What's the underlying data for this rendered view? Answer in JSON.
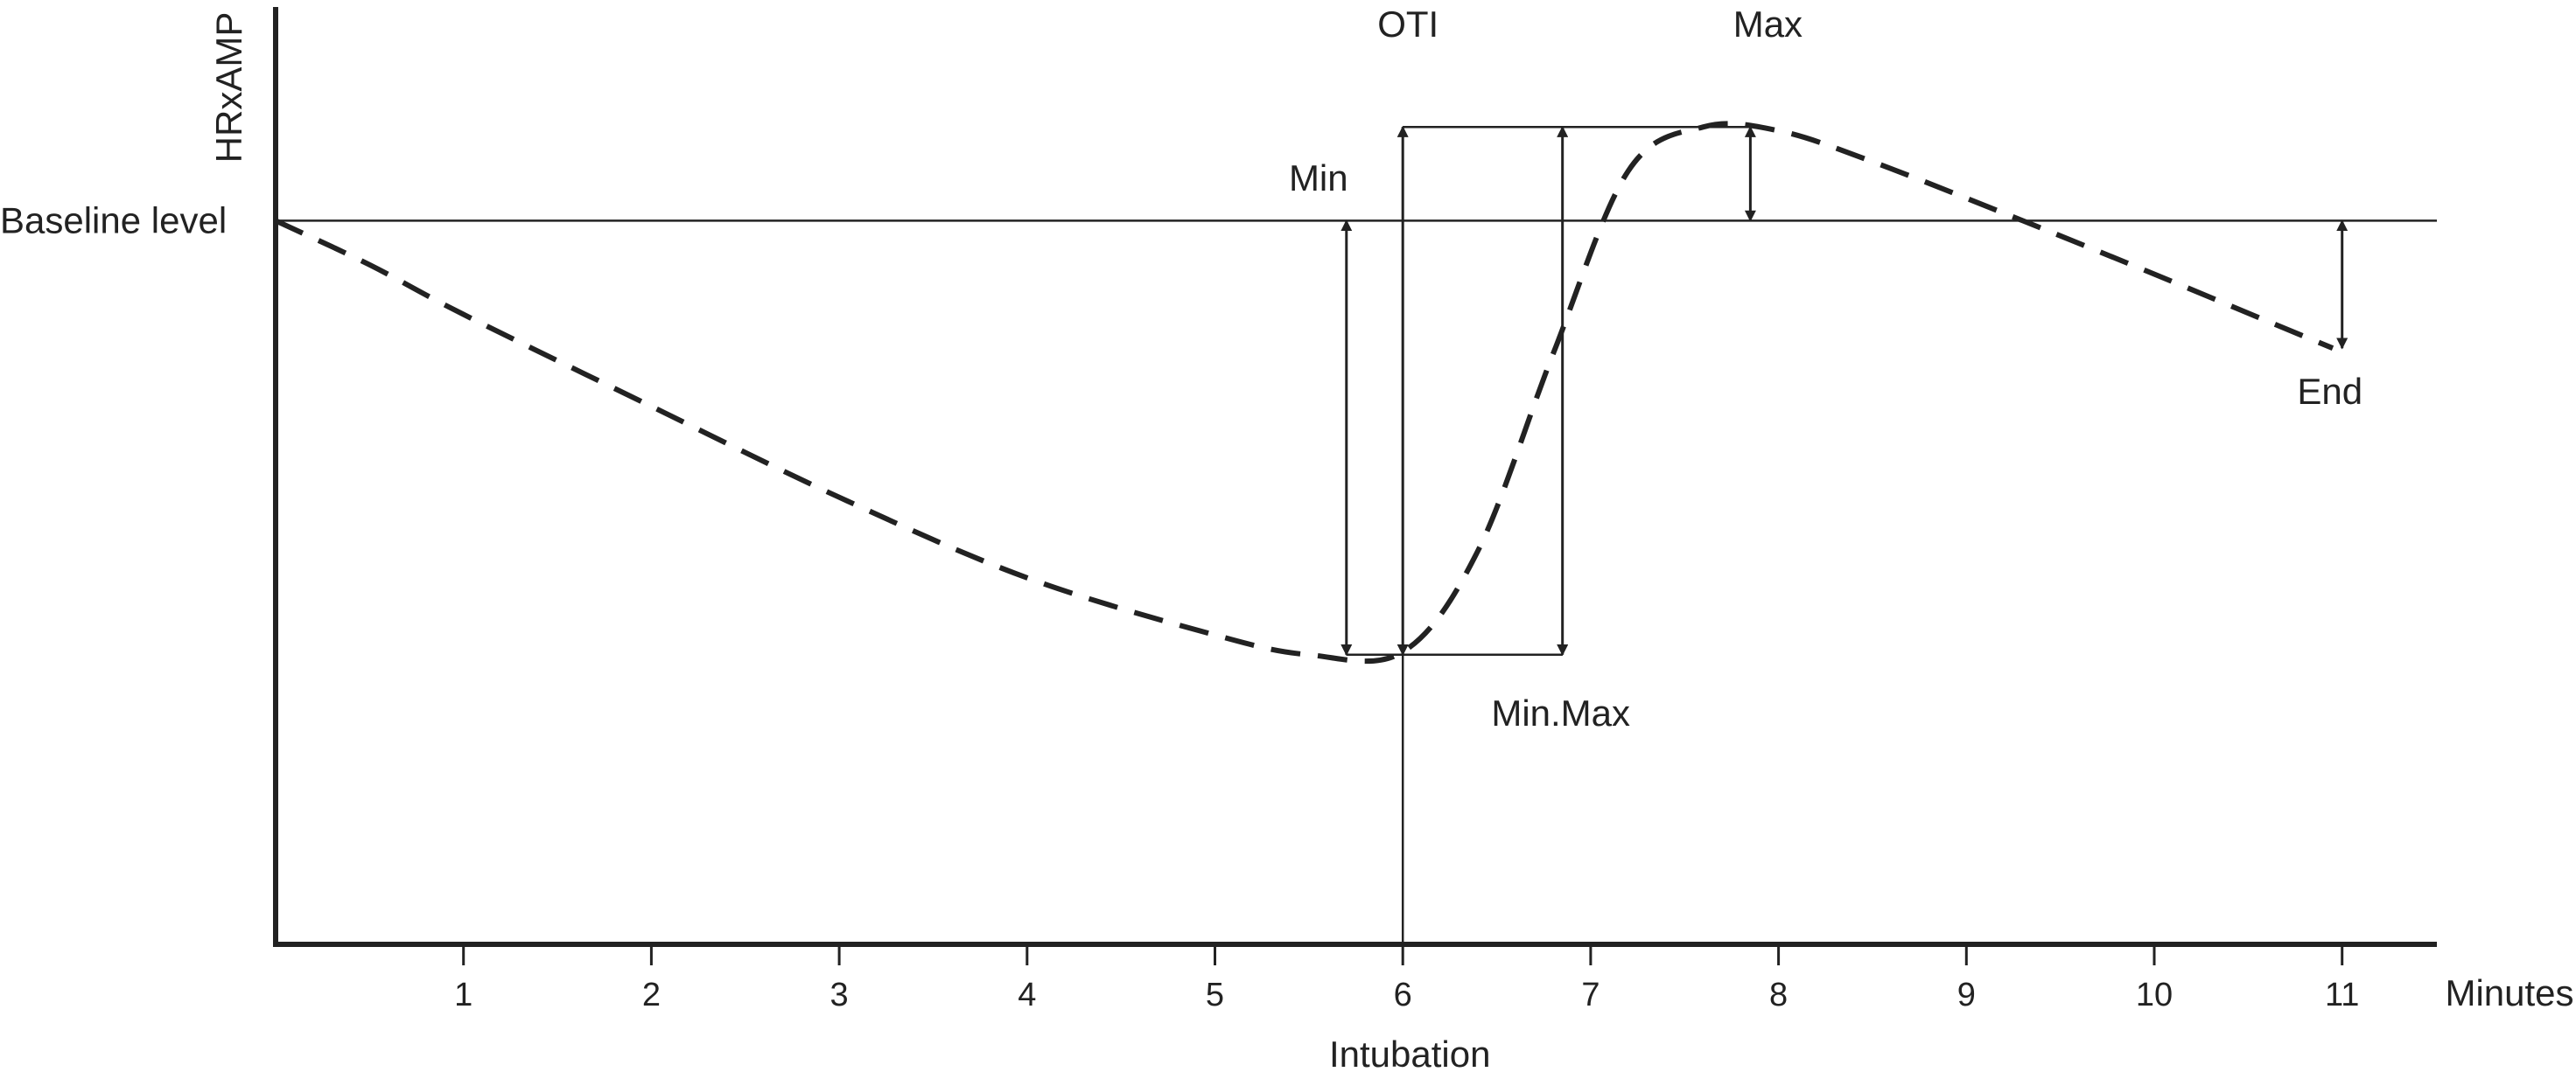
{
  "chart_data": {
    "type": "line",
    "title": "",
    "xlabel": "Minutes",
    "ylabel": "HRxAMP",
    "xlim": [
      0,
      11.5
    ],
    "ylim": [
      0,
      1
    ],
    "x_ticks": [
      1,
      2,
      3,
      4,
      5,
      6,
      7,
      8,
      9,
      10,
      11
    ],
    "grid": false,
    "legend": "none",
    "line_color": "#222222",
    "line_style": "dashed",
    "baseline": {
      "label": "Baseline level",
      "y": 0.772
    },
    "series": [
      {
        "values": [
          {
            "x": 0.0,
            "y": 0.772
          },
          {
            "x": 0.5,
            "y": 0.725
          },
          {
            "x": 1.0,
            "y": 0.672
          },
          {
            "x": 2.0,
            "y": 0.574
          },
          {
            "x": 3.0,
            "y": 0.477
          },
          {
            "x": 4.0,
            "y": 0.391
          },
          {
            "x": 5.0,
            "y": 0.33
          },
          {
            "x": 5.5,
            "y": 0.309
          },
          {
            "x": 6.0,
            "y": 0.312
          },
          {
            "x": 6.4,
            "y": 0.42
          },
          {
            "x": 6.8,
            "y": 0.63
          },
          {
            "x": 7.2,
            "y": 0.825
          },
          {
            "x": 7.6,
            "y": 0.872
          },
          {
            "x": 8.0,
            "y": 0.868
          },
          {
            "x": 8.5,
            "y": 0.835
          },
          {
            "x": 9.3,
            "y": 0.772
          },
          {
            "x": 10.0,
            "y": 0.715
          },
          {
            "x": 10.6,
            "y": 0.665
          },
          {
            "x": 10.95,
            "y": 0.636
          }
        ]
      }
    ],
    "annotations": [
      {
        "label": "OTI",
        "x": 6.0
      },
      {
        "label": "Max",
        "x": 7.85
      },
      {
        "label": "Min",
        "x": 5.7
      },
      {
        "label": "Min.Max",
        "x": 6.85
      },
      {
        "label": "End",
        "x": 11.0
      },
      {
        "label": "Intubation",
        "x": 6.0
      }
    ],
    "levels": {
      "min": 0.309,
      "max": 0.872,
      "end": 0.636
    }
  }
}
